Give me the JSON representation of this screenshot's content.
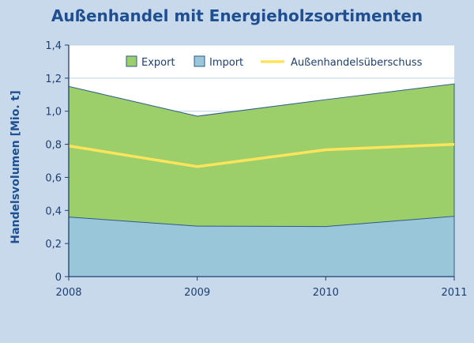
{
  "chart_data": {
    "type": "area",
    "title": "Außenhandel mit Energieholzsortimenten",
    "ylabel": "Handelsvolumen [Mio. t]",
    "xlabel": "",
    "x": [
      "2008",
      "2009",
      "2010",
      "2011"
    ],
    "ylim": [
      0,
      1.4
    ],
    "yticks": [
      "0",
      "0,2",
      "0,4",
      "0,6",
      "0,8",
      "1,0",
      "1,2",
      "1,4"
    ],
    "grid": true,
    "legend_position": "top-right",
    "series": [
      {
        "name": "Export",
        "type": "area",
        "color": "#9ccf6a",
        "values": [
          1.15,
          0.97,
          1.07,
          1.165
        ]
      },
      {
        "name": "Import",
        "type": "area",
        "color": "#99c6d8",
        "values": [
          0.36,
          0.305,
          0.303,
          0.365
        ]
      },
      {
        "name": "Außenhandelsüberschuss",
        "type": "line",
        "color": "#ffe45c",
        "values": [
          0.79,
          0.665,
          0.767,
          0.8
        ]
      }
    ],
    "colors": {
      "background": "#c9d9ec",
      "plot_area": "#ffffff",
      "axis_text": "#1d3f70",
      "title": "#1d4f91",
      "area_stroke": "#2e5b8a"
    }
  }
}
